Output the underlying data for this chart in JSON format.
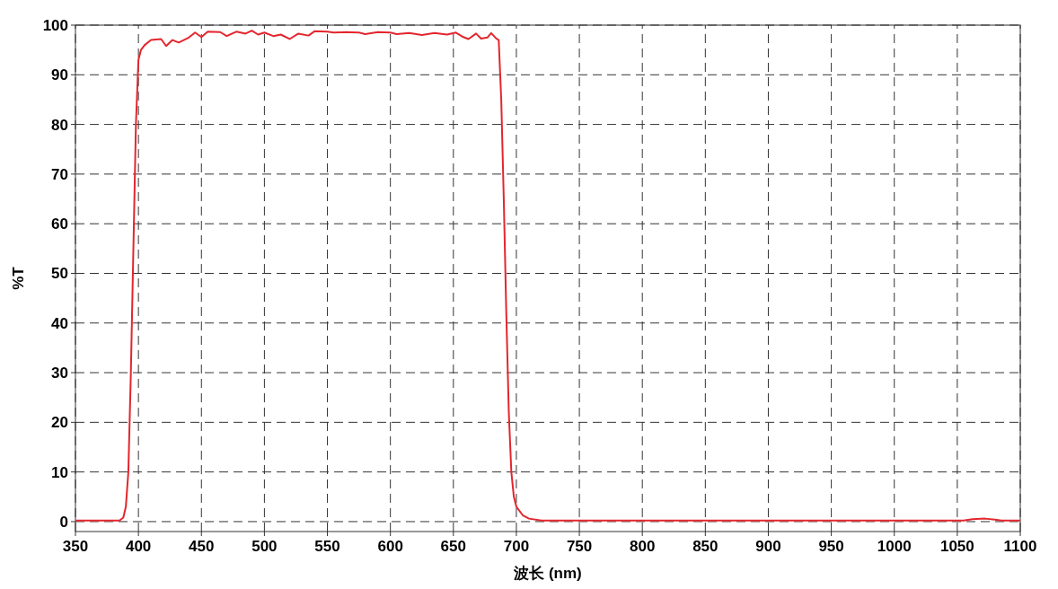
{
  "chart_data": {
    "type": "line",
    "xlabel": "波长 (nm)",
    "ylabel": "%T",
    "xlim": [
      350,
      1100
    ],
    "ylim": [
      -2,
      100
    ],
    "xticks": [
      350,
      400,
      450,
      500,
      550,
      600,
      650,
      700,
      750,
      800,
      850,
      900,
      950,
      1000,
      1050,
      1100
    ],
    "yticks": [
      0,
      10,
      20,
      30,
      40,
      50,
      60,
      70,
      80,
      90,
      100
    ],
    "grid": true,
    "line_style": "solid",
    "marker": "none",
    "series": [
      {
        "color": "#e3262e",
        "x": [
          350,
          385,
          388,
          390,
          392,
          394,
          396,
          398,
          400,
          402,
          405,
          410,
          418,
          422,
          427,
          432,
          440,
          445,
          450,
          455,
          465,
          470,
          478,
          485,
          490,
          495,
          500,
          507,
          513,
          520,
          527,
          535,
          540,
          550,
          555,
          565,
          575,
          580,
          590,
          600,
          605,
          615,
          625,
          635,
          645,
          652,
          657,
          662,
          668,
          672,
          677,
          680,
          684,
          686,
          688,
          690,
          692,
          694,
          696,
          698,
          700,
          705,
          710,
          720,
          800,
          950,
          1055,
          1062,
          1072,
          1080,
          1085,
          1100
        ],
        "values": [
          0.2,
          0.2,
          0.8,
          3,
          10,
          30,
          55,
          80,
          93,
          95,
          96,
          97,
          97.2,
          95.8,
          97,
          96.5,
          97.5,
          98.5,
          97.6,
          98.7,
          98.6,
          97.8,
          98.7,
          98.3,
          98.9,
          98.1,
          98.5,
          97.8,
          98.1,
          97.2,
          98.3,
          97.9,
          98.8,
          98.7,
          98.5,
          98.6,
          98.5,
          98.2,
          98.6,
          98.5,
          98.2,
          98.4,
          98,
          98.4,
          98.1,
          98.5,
          97.7,
          97.2,
          98.3,
          97.3,
          97.5,
          98.4,
          97.3,
          97,
          85,
          65,
          42,
          22,
          10,
          5,
          3,
          1.3,
          0.6,
          0.2,
          0.2,
          0.2,
          0.2,
          0.5,
          0.6,
          0.4,
          0.2,
          0.2
        ]
      }
    ]
  }
}
